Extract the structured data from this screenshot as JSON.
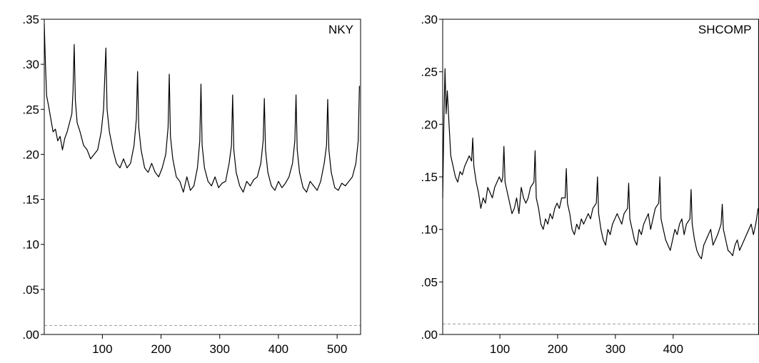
{
  "chart_data": [
    {
      "type": "line",
      "x": [
        1,
        3,
        5,
        8,
        12,
        16,
        20,
        24,
        28,
        32,
        36,
        40,
        44,
        48,
        50,
        52,
        54,
        57,
        62,
        68,
        74,
        80,
        86,
        92,
        98,
        102,
        106,
        108,
        112,
        118,
        124,
        130,
        136,
        142,
        148,
        154,
        158,
        160,
        162,
        166,
        172,
        178,
        184,
        190,
        196,
        202,
        208,
        212,
        214,
        216,
        220,
        226,
        232,
        238,
        244,
        250,
        256,
        262,
        266,
        268,
        270,
        274,
        280,
        286,
        292,
        298,
        304,
        310,
        316,
        320,
        322,
        324,
        328,
        334,
        340,
        346,
        352,
        358,
        364,
        370,
        374,
        376,
        378,
        382,
        388,
        394,
        400,
        406,
        412,
        418,
        424,
        428,
        430,
        432,
        436,
        442,
        448,
        454,
        460,
        466,
        472,
        478,
        482,
        484,
        486,
        490,
        496,
        502,
        508,
        514,
        520,
        526,
        532,
        536,
        538
      ],
      "series": [
        {
          "name": "NKY",
          "color": "#000000",
          "values": [
            0.345,
            0.3,
            0.265,
            0.255,
            0.24,
            0.225,
            0.228,
            0.215,
            0.22,
            0.205,
            0.218,
            0.225,
            0.235,
            0.245,
            0.27,
            0.322,
            0.26,
            0.235,
            0.225,
            0.21,
            0.205,
            0.195,
            0.2,
            0.205,
            0.225,
            0.25,
            0.318,
            0.25,
            0.225,
            0.205,
            0.19,
            0.185,
            0.195,
            0.185,
            0.19,
            0.21,
            0.24,
            0.292,
            0.23,
            0.205,
            0.185,
            0.18,
            0.19,
            0.18,
            0.175,
            0.185,
            0.2,
            0.23,
            0.289,
            0.22,
            0.195,
            0.175,
            0.17,
            0.158,
            0.175,
            0.16,
            0.165,
            0.185,
            0.215,
            0.278,
            0.21,
            0.185,
            0.17,
            0.165,
            0.175,
            0.163,
            0.168,
            0.17,
            0.19,
            0.21,
            0.266,
            0.205,
            0.18,
            0.165,
            0.158,
            0.17,
            0.165,
            0.172,
            0.175,
            0.19,
            0.215,
            0.262,
            0.205,
            0.18,
            0.165,
            0.16,
            0.17,
            0.163,
            0.168,
            0.175,
            0.19,
            0.215,
            0.266,
            0.205,
            0.18,
            0.163,
            0.158,
            0.17,
            0.165,
            0.16,
            0.17,
            0.19,
            0.21,
            0.261,
            0.205,
            0.18,
            0.163,
            0.16,
            0.168,
            0.165,
            0.17,
            0.175,
            0.19,
            0.215,
            0.276
          ]
        }
      ],
      "reference_line": 0.01,
      "xlim": [
        1,
        540
      ],
      "ylim": [
        0,
        0.35
      ],
      "xticks": [
        100,
        200,
        300,
        400,
        500
      ],
      "yticks": [
        {
          "value": 0,
          "label": ".00"
        },
        {
          "value": 0.05,
          "label": ".05"
        },
        {
          "value": 0.1,
          "label": ".10"
        },
        {
          "value": 0.15,
          "label": ".15"
        },
        {
          "value": 0.2,
          "label": ".20"
        },
        {
          "value": 0.25,
          "label": ".25"
        },
        {
          "value": 0.3,
          "label": ".30"
        },
        {
          "value": 0.35,
          "label": ".35"
        }
      ]
    },
    {
      "type": "line",
      "x": [
        1,
        3,
        5,
        7,
        9,
        12,
        15,
        19,
        23,
        27,
        31,
        35,
        39,
        43,
        47,
        51,
        53,
        55,
        59,
        63,
        67,
        71,
        75,
        79,
        83,
        87,
        91,
        95,
        99,
        103,
        105,
        107,
        109,
        113,
        117,
        121,
        125,
        129,
        133,
        137,
        141,
        145,
        149,
        153,
        159,
        161,
        163,
        167,
        171,
        175,
        179,
        183,
        187,
        191,
        195,
        199,
        203,
        207,
        213,
        215,
        217,
        221,
        225,
        229,
        233,
        237,
        241,
        245,
        249,
        253,
        257,
        261,
        267,
        269,
        271,
        275,
        279,
        283,
        287,
        291,
        295,
        299,
        303,
        307,
        311,
        315,
        321,
        323,
        325,
        329,
        333,
        337,
        341,
        345,
        349,
        353,
        357,
        361,
        365,
        369,
        375,
        377,
        379,
        383,
        387,
        391,
        395,
        399,
        403,
        407,
        411,
        415,
        419,
        423,
        429,
        431,
        433,
        437,
        441,
        445,
        449,
        453,
        457,
        461,
        465,
        469,
        473,
        477,
        483,
        485,
        487,
        491,
        495,
        499,
        503,
        507,
        511,
        515,
        519,
        523,
        527,
        531,
        535,
        539,
        543,
        547
      ],
      "series": [
        {
          "name": "SHCOMP",
          "color": "#000000",
          "values": [
            0.13,
            0.2,
            0.253,
            0.21,
            0.232,
            0.2,
            0.17,
            0.16,
            0.15,
            0.145,
            0.155,
            0.152,
            0.16,
            0.165,
            0.17,
            0.165,
            0.187,
            0.16,
            0.145,
            0.135,
            0.12,
            0.13,
            0.125,
            0.14,
            0.135,
            0.13,
            0.14,
            0.145,
            0.15,
            0.145,
            0.15,
            0.179,
            0.145,
            0.135,
            0.125,
            0.115,
            0.12,
            0.13,
            0.115,
            0.14,
            0.13,
            0.125,
            0.13,
            0.14,
            0.145,
            0.175,
            0.13,
            0.12,
            0.105,
            0.1,
            0.11,
            0.105,
            0.115,
            0.11,
            0.12,
            0.125,
            0.12,
            0.13,
            0.13,
            0.158,
            0.125,
            0.115,
            0.1,
            0.095,
            0.105,
            0.1,
            0.11,
            0.105,
            0.11,
            0.115,
            0.11,
            0.12,
            0.125,
            0.15,
            0.115,
            0.1,
            0.09,
            0.085,
            0.1,
            0.095,
            0.105,
            0.11,
            0.115,
            0.11,
            0.105,
            0.115,
            0.12,
            0.144,
            0.11,
            0.1,
            0.09,
            0.085,
            0.1,
            0.095,
            0.105,
            0.11,
            0.115,
            0.1,
            0.11,
            0.12,
            0.125,
            0.15,
            0.11,
            0.1,
            0.09,
            0.085,
            0.08,
            0.09,
            0.1,
            0.095,
            0.105,
            0.11,
            0.095,
            0.105,
            0.11,
            0.138,
            0.105,
            0.09,
            0.08,
            0.075,
            0.072,
            0.085,
            0.09,
            0.095,
            0.1,
            0.085,
            0.09,
            0.095,
            0.105,
            0.124,
            0.1,
            0.09,
            0.08,
            0.078,
            0.075,
            0.085,
            0.09,
            0.08,
            0.085,
            0.09,
            0.095,
            0.1,
            0.105,
            0.095,
            0.105,
            0.12
          ]
        }
      ],
      "reference_line": 0.01,
      "xlim": [
        1,
        548
      ],
      "ylim": [
        0,
        0.3
      ],
      "xticks": [
        100,
        200,
        300,
        400
      ],
      "yticks": [
        {
          "value": 0,
          "label": ".00"
        },
        {
          "value": 0.05,
          "label": ".05"
        },
        {
          "value": 0.1,
          "label": ".10"
        },
        {
          "value": 0.15,
          "label": ".15"
        },
        {
          "value": 0.2,
          "label": ".20"
        },
        {
          "value": 0.25,
          "label": ".25"
        },
        {
          "value": 0.3,
          "label": ".30"
        }
      ]
    }
  ]
}
